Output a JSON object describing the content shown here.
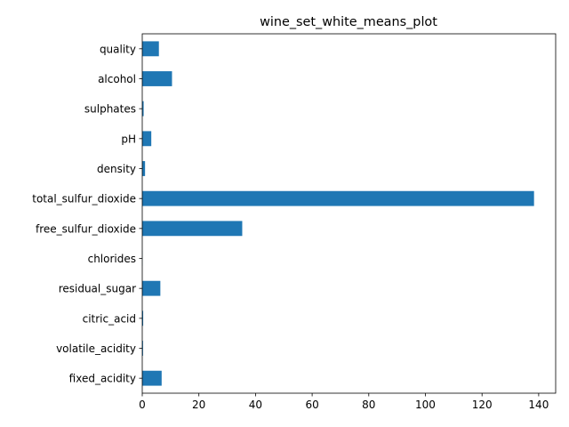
{
  "chart_data": {
    "type": "bar",
    "orientation": "horizontal",
    "title": "wine_set_white_means_plot",
    "xlabel": "",
    "ylabel": "",
    "categories": [
      "fixed_acidity",
      "volatile_acidity",
      "citric_acid",
      "residual_sugar",
      "chlorides",
      "free_sulfur_dioxide",
      "total_sulfur_dioxide",
      "density",
      "pH",
      "sulphates",
      "alcohol",
      "quality"
    ],
    "values": [
      6.85,
      0.28,
      0.33,
      6.39,
      0.05,
      35.31,
      138.36,
      0.99,
      3.19,
      0.49,
      10.51,
      5.88
    ],
    "xlim": [
      0,
      146
    ],
    "xticks": [
      "0",
      "20",
      "40",
      "60",
      "80",
      "100",
      "120",
      "140"
    ],
    "bar_color": "#1f77b4",
    "grid": false,
    "legend": "none"
  }
}
